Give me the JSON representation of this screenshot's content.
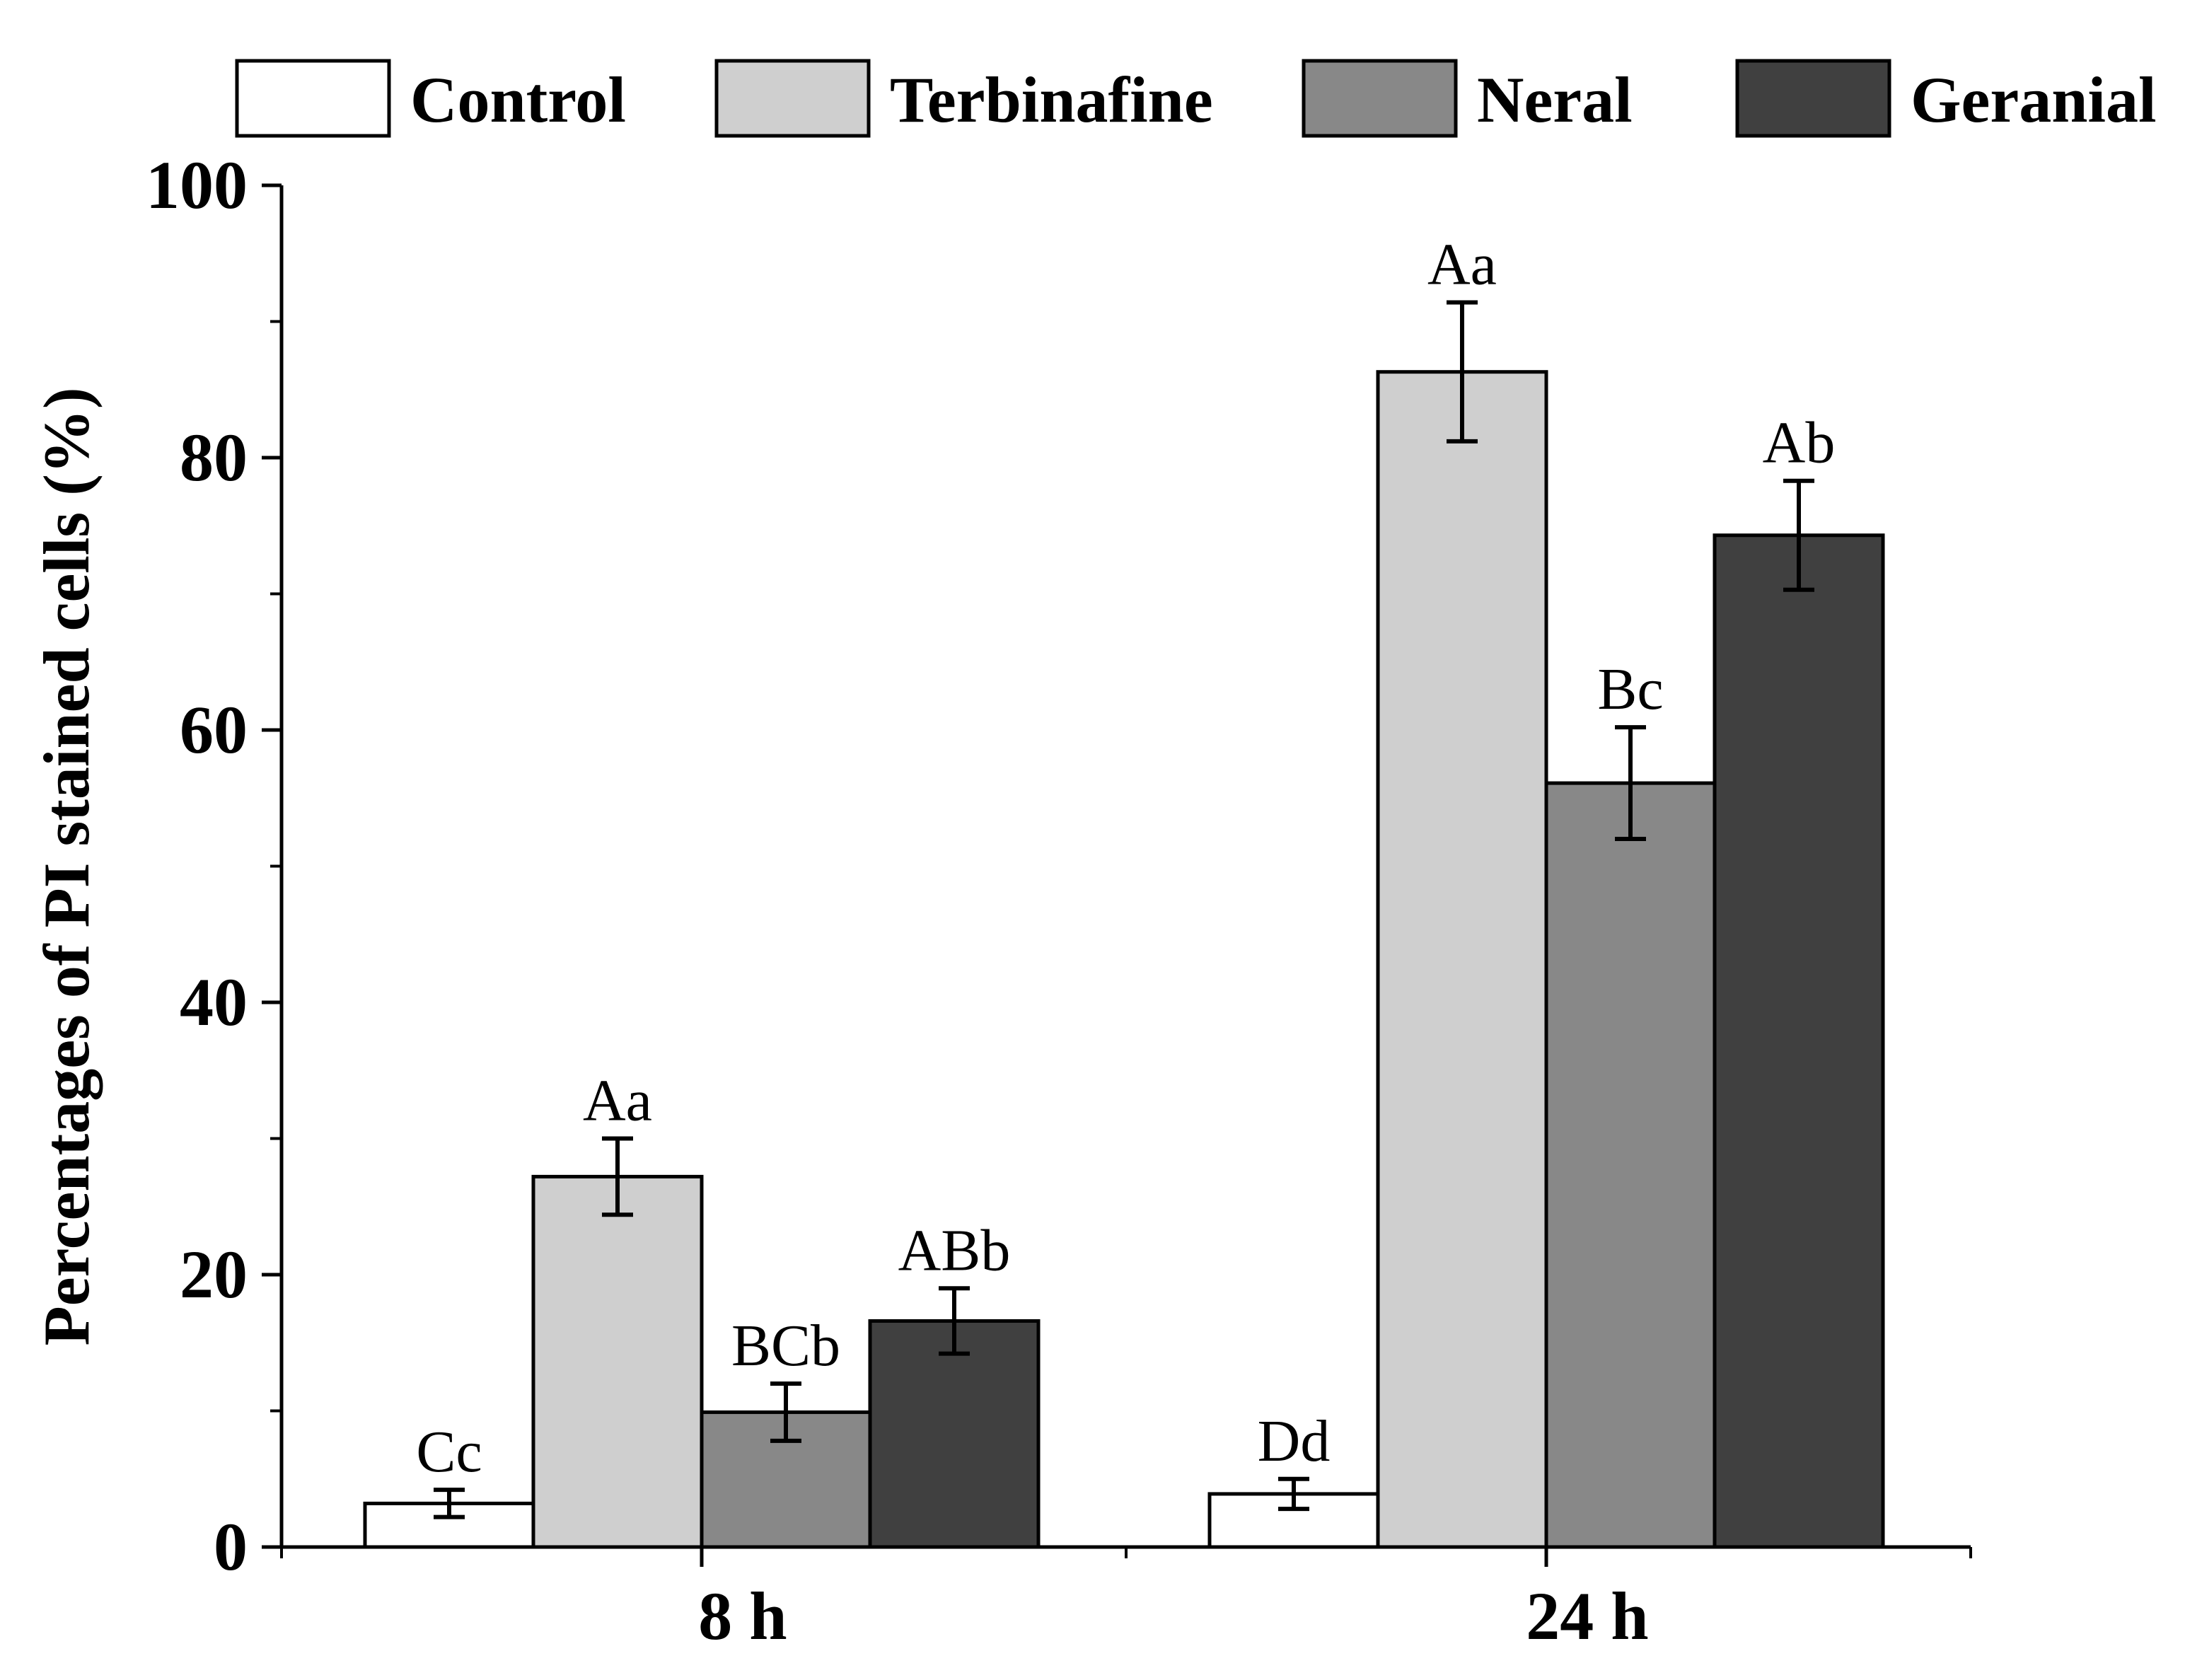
{
  "chart_data": {
    "type": "bar",
    "title": "",
    "xlabel": "",
    "ylabel": "Percentages of PI stained cells (%)",
    "ylim": [
      0,
      100
    ],
    "yticks": [
      0,
      20,
      40,
      60,
      80,
      100
    ],
    "grid": false,
    "legend_position": "top",
    "categories": [
      "8 h",
      "24 h"
    ],
    "series": [
      {
        "name": "Control",
        "color": "#ffffff",
        "values": [
          3.2,
          3.9
        ],
        "errors": [
          1.0,
          1.1
        ],
        "labels": [
          "Cc",
          "Dd"
        ]
      },
      {
        "name": "Terbinafine",
        "color": "#cfcfcf",
        "values": [
          27.2,
          86.3
        ],
        "errors": [
          2.8,
          5.1
        ],
        "labels": [
          "Aa",
          "Aa"
        ]
      },
      {
        "name": "Neral",
        "color": "#888888",
        "values": [
          9.9,
          56.1
        ],
        "errors": [
          2.1,
          4.1
        ],
        "labels": [
          "BCb",
          "Bc"
        ]
      },
      {
        "name": "Geranial",
        "color": "#404040",
        "values": [
          16.6,
          74.3
        ],
        "errors": [
          2.4,
          4.0
        ],
        "labels": [
          "ABb",
          "Ab"
        ]
      }
    ]
  }
}
